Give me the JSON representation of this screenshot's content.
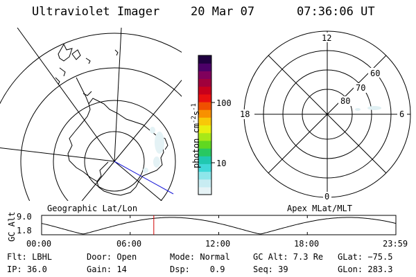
{
  "header": {
    "title": "Ultraviolet Imager",
    "date": "20 Mar 07",
    "time": "07:36:06 UT"
  },
  "left_map": {
    "caption": "Geographic Lat/Lon"
  },
  "right_map": {
    "caption": "Apex MLat/MLT",
    "mlt_labels": [
      "12",
      "18",
      "6",
      "0"
    ],
    "mlat_labels": [
      "60",
      "70",
      "80"
    ]
  },
  "colorbar": {
    "unit_label": "photon cm",
    "unit_sup1": "-2",
    "unit_mid": "s",
    "unit_sup2": "-1",
    "tick_labels": [
      "100",
      "10"
    ],
    "colors": [
      "#e6f3f6",
      "#c8ecf2",
      "#8ee6ea",
      "#40d8d8",
      "#20c8b0",
      "#28c860",
      "#60d820",
      "#a8e818",
      "#e8f010",
      "#f8c808",
      "#f89000",
      "#f05000",
      "#e81010",
      "#c8001c",
      "#a0003c",
      "#80005c",
      "#4c0068",
      "#200040"
    ]
  },
  "timeline": {
    "axis_label": "GC Alt",
    "y_ticks": [
      "9.0",
      "1.8"
    ],
    "x_ticks": [
      "00:00",
      "06:00",
      "12:00",
      "18:00",
      "23:59"
    ],
    "current_time_hours": 7.6
  },
  "footer": {
    "rows": [
      [
        "Flt: LBHL",
        "Door: Open",
        "Mode: Normal",
        "GC Alt: 7.3 Re",
        "GLat: −75.5"
      ],
      [
        "IP: 36.0",
        "Gain: 14",
        "Dsp:    0.9",
        "Seq: 39",
        "GLon: 283.3"
      ]
    ]
  }
}
